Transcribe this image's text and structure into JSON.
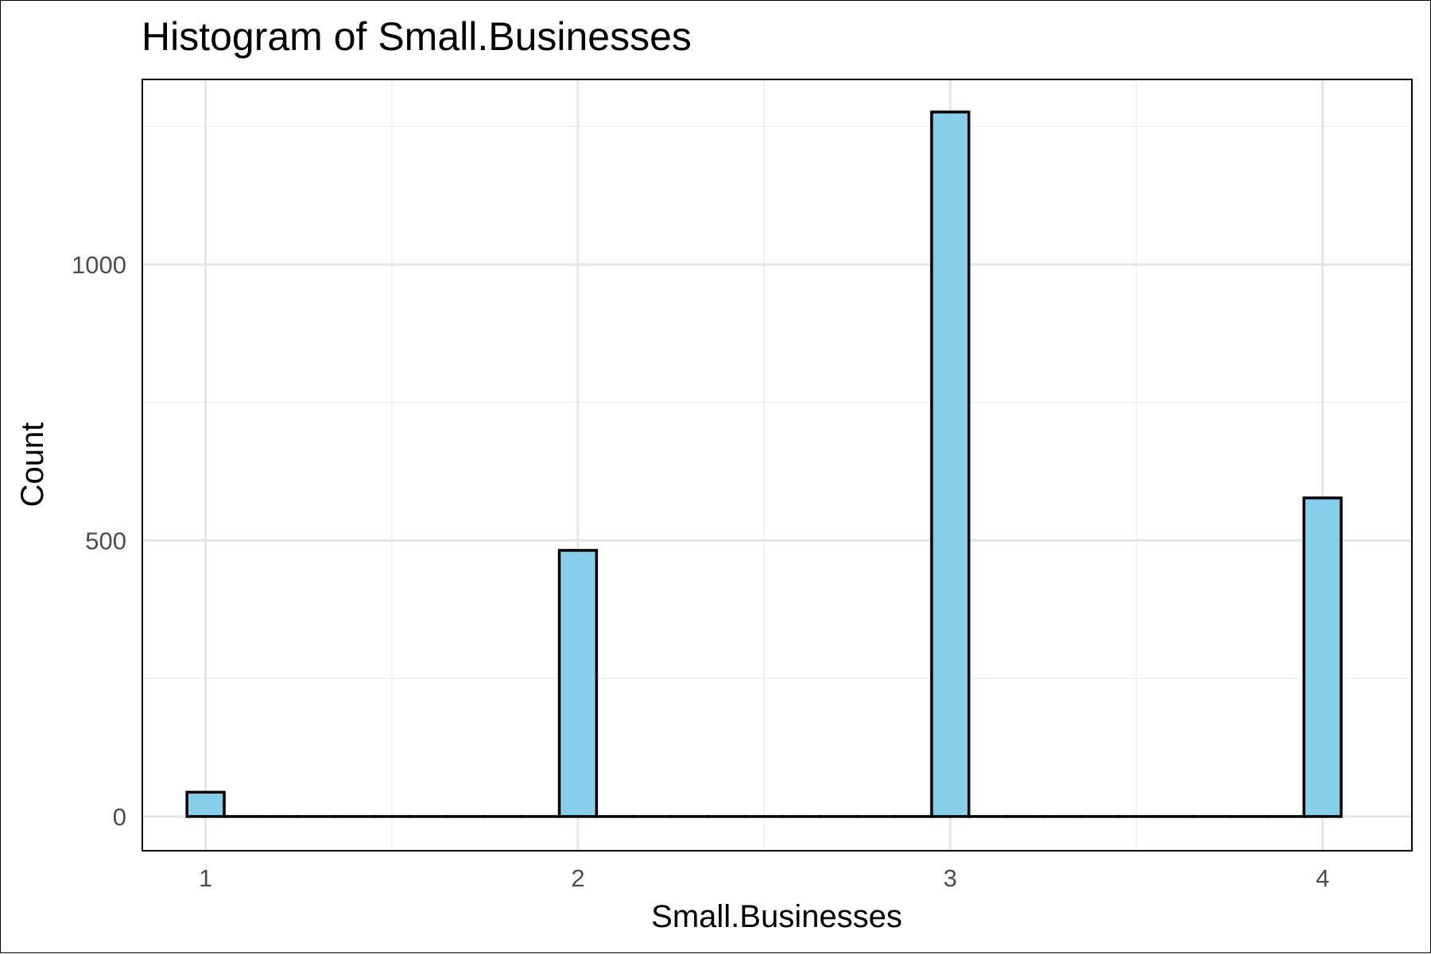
{
  "chart_data": {
    "type": "bar",
    "title": "Histogram of Small.Businesses",
    "xlabel": "Small.Businesses",
    "ylabel": "Count",
    "x_ticks": [
      "1",
      "2",
      "3",
      "4"
    ],
    "y_ticks": [
      "0",
      "500",
      "1000"
    ],
    "xlim": [
      0.83,
      4.24
    ],
    "ylim": [
      -62,
      1335
    ],
    "bar_width": 0.1,
    "bars": [
      {
        "x": 1.0,
        "value": 44
      },
      {
        "x": 1.1,
        "value": 0
      },
      {
        "x": 1.2,
        "value": 0
      },
      {
        "x": 1.3,
        "value": 0
      },
      {
        "x": 1.4,
        "value": 0
      },
      {
        "x": 1.5,
        "value": 0
      },
      {
        "x": 1.6,
        "value": 0
      },
      {
        "x": 1.7,
        "value": 0
      },
      {
        "x": 1.8,
        "value": 0
      },
      {
        "x": 1.9,
        "value": 0
      },
      {
        "x": 2.0,
        "value": 482
      },
      {
        "x": 2.1,
        "value": 0
      },
      {
        "x": 2.2,
        "value": 0
      },
      {
        "x": 2.3,
        "value": 0
      },
      {
        "x": 2.4,
        "value": 0
      },
      {
        "x": 2.5,
        "value": 0
      },
      {
        "x": 2.6,
        "value": 0
      },
      {
        "x": 2.7,
        "value": 0
      },
      {
        "x": 2.8,
        "value": 0
      },
      {
        "x": 2.9,
        "value": 0
      },
      {
        "x": 3.0,
        "value": 1276
      },
      {
        "x": 3.1,
        "value": 0
      },
      {
        "x": 3.2,
        "value": 0
      },
      {
        "x": 3.3,
        "value": 0
      },
      {
        "x": 3.4,
        "value": 0
      },
      {
        "x": 3.5,
        "value": 0
      },
      {
        "x": 3.6,
        "value": 0
      },
      {
        "x": 3.7,
        "value": 0
      },
      {
        "x": 3.8,
        "value": 0
      },
      {
        "x": 3.9,
        "value": 0
      },
      {
        "x": 4.0,
        "value": 577
      }
    ],
    "grid": true,
    "bar_fill": "#87ceeb",
    "bar_outline": "#000000",
    "grid_color": "#e5e5e5"
  }
}
